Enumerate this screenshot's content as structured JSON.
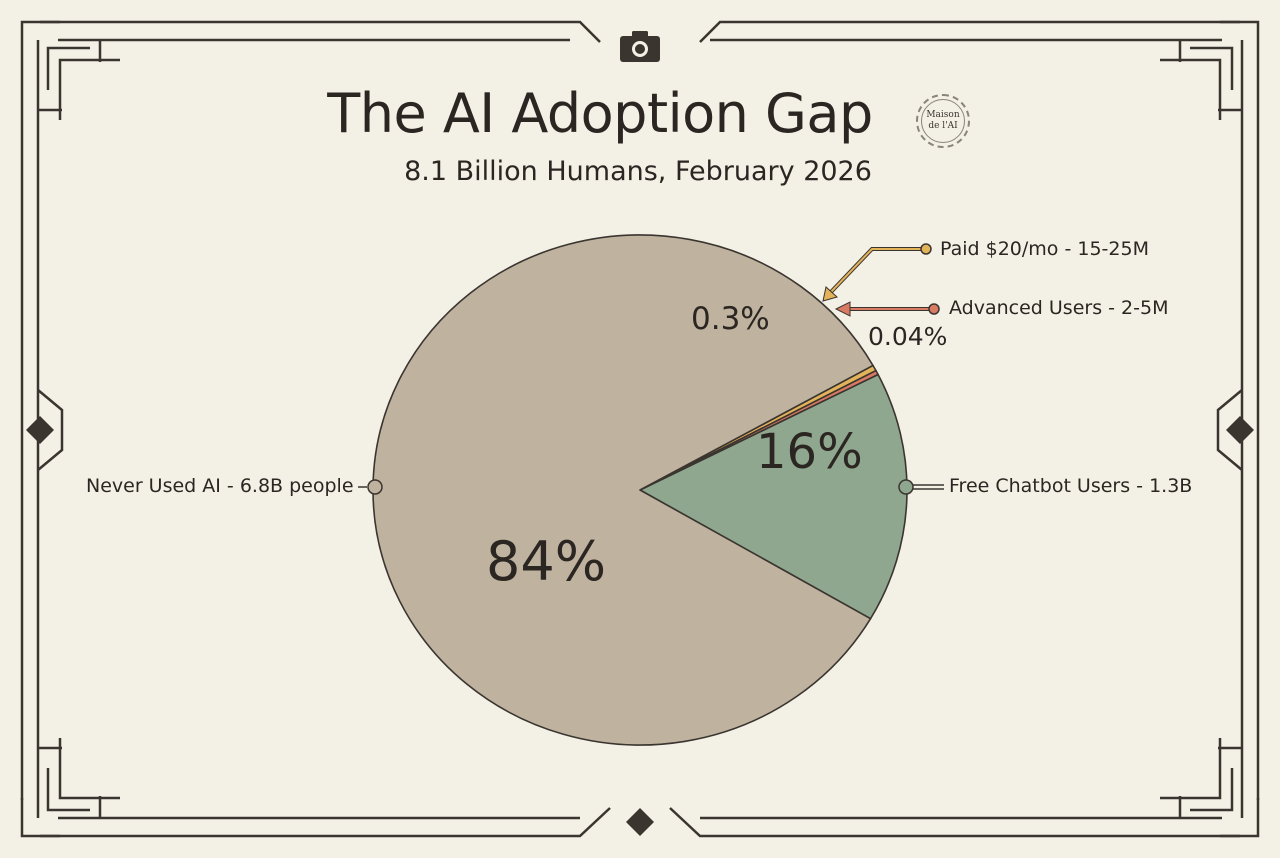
{
  "chart_data": {
    "type": "pie",
    "title": "The AI Adoption Gap",
    "subtitle": "8.1 Billion Humans, February 2026",
    "badge": "Maison de l'AI",
    "badge_lines": [
      "Maison",
      "de l'AI"
    ],
    "slices": [
      {
        "name": "Free Chatbot Users - 1.3B",
        "percent": 16,
        "percent_label": "16%",
        "color": "#8fa78f"
      },
      {
        "name": "Advanced Users - 2-5M",
        "percent": 0.04,
        "percent_label": "0.04%",
        "color": "#d97a63"
      },
      {
        "name": "Paid $20/mo - 15-25M",
        "percent": 0.3,
        "percent_label": "0.3%",
        "color": "#e3b35a"
      },
      {
        "name": "Never Used AI - 6.8B people",
        "percent": 84,
        "percent_label": "84%",
        "color": "#bfb29f"
      }
    ]
  },
  "frame": {
    "top_icon": "camera-icon",
    "ornament": "diamond-icon",
    "line_color": "#3b3530",
    "background": "#f3f0e6"
  }
}
